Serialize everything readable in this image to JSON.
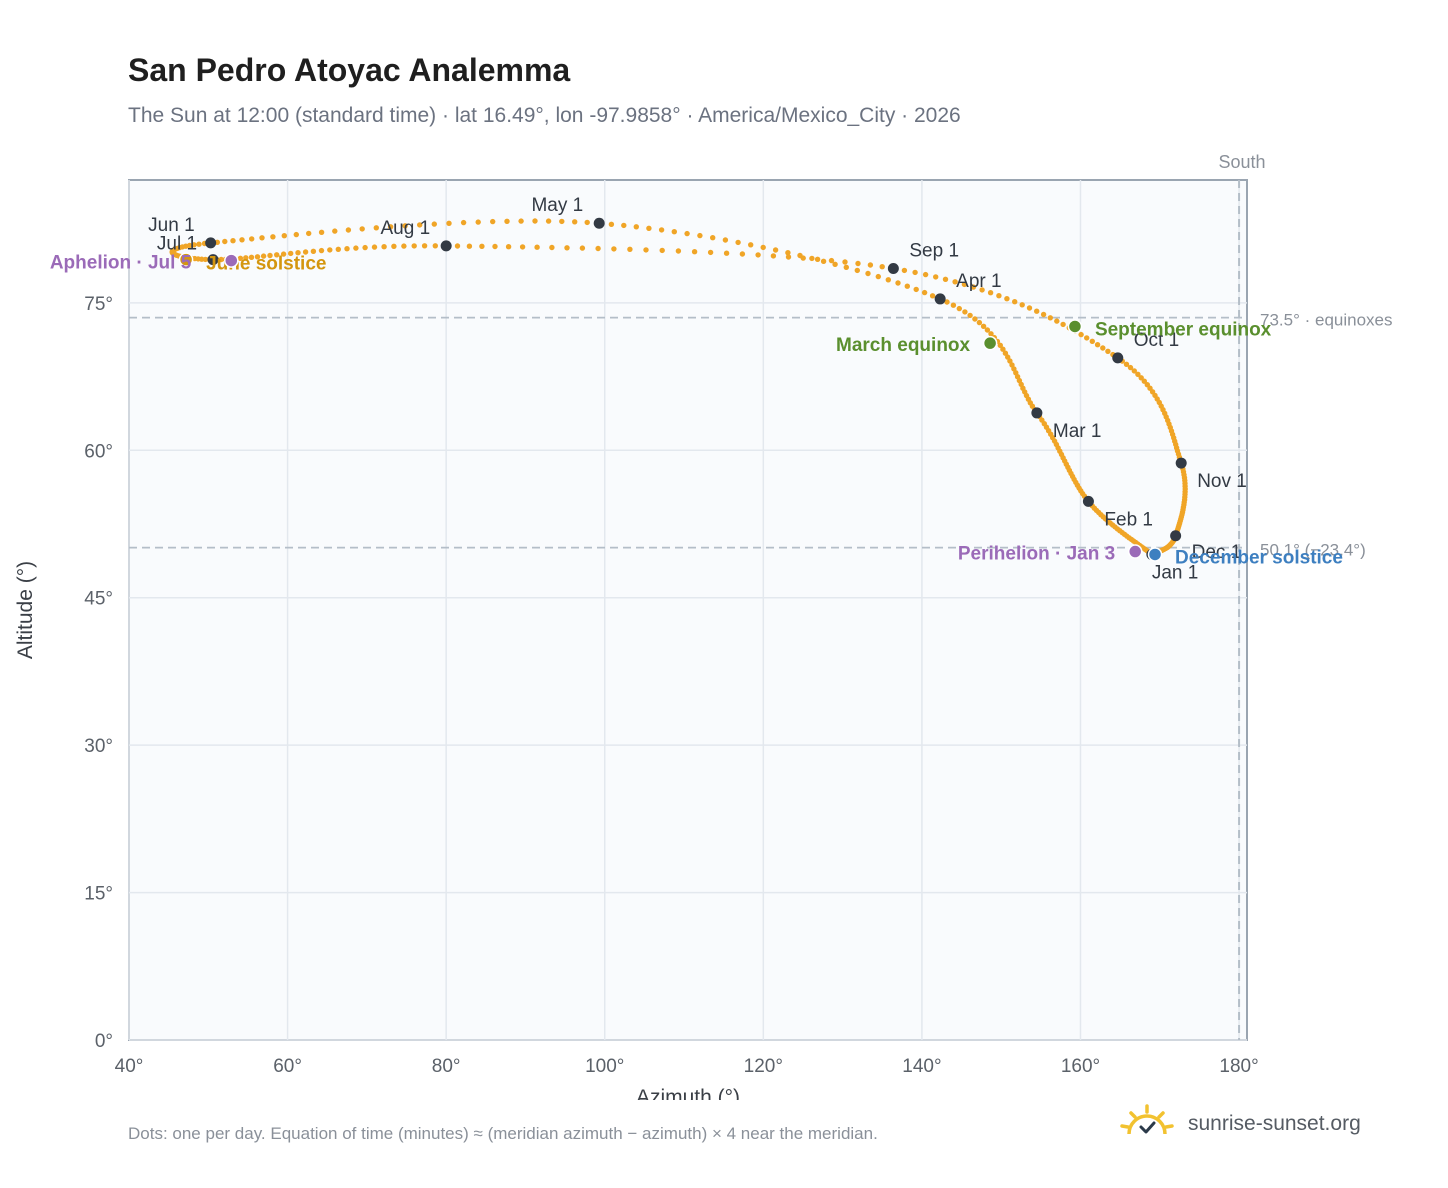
{
  "title": "San Pedro Atoyac Analemma",
  "subtitle": "The Sun at 12:00 (standard time) · lat 16.49°, lon -97.9858° · America/Mexico_City · 2026",
  "footnote": "Dots: one per day. Equation of time (minutes) ≈ (meridian azimuth − azimuth) × 4 near the meridian.",
  "brand": {
    "name": "sunrise-sunset.org",
    "icon": "sun-logo-icon"
  },
  "colors": {
    "curve": "#f0a527",
    "month_marker": "#333a44",
    "equinox": "#5a8f2e",
    "aphelion": "#9b6bb8",
    "solstice_june": "#d4960f",
    "solstice_december": "#3d7fc0",
    "reference_line": "#b4bec8",
    "plot_bg": "#f9fbfd",
    "grid": "#e3e8ee"
  },
  "chart_data": {
    "type": "scatter",
    "xlabel": "Azimuth (°)",
    "ylabel": "Altitude (°)",
    "xlim": [
      40,
      181
    ],
    "ylim": [
      0,
      87.5
    ],
    "x_ticks": [
      40,
      60,
      80,
      100,
      120,
      140,
      160,
      180
    ],
    "x_tick_labels": [
      "40°",
      "60°",
      "80°",
      "100°",
      "120°",
      "140°",
      "160°",
      "180°"
    ],
    "y_ticks": [
      0,
      15,
      30,
      45,
      60,
      75
    ],
    "y_tick_labels": [
      "0°",
      "15°",
      "30°",
      "45°",
      "60°",
      "75°"
    ],
    "grid": true,
    "meridian": {
      "azimuth": 180,
      "label": "South"
    },
    "reference_lines": [
      {
        "altitude": 73.5,
        "label": "73.5° · equinoxes"
      },
      {
        "altitude": 50.1,
        "label": "50.1° (−23.4°)"
      }
    ],
    "month_markers": [
      {
        "label": "Jan 1",
        "x": 169.0,
        "y": 49.4
      },
      {
        "label": "Feb 1",
        "x": 161.0,
        "y": 54.8
      },
      {
        "label": "Mar 1",
        "x": 154.5,
        "y": 63.8
      },
      {
        "label": "Apr 1",
        "x": 142.3,
        "y": 75.4
      },
      {
        "label": "May 1",
        "x": 99.3,
        "y": 83.1
      },
      {
        "label": "Jun 1",
        "x": 50.3,
        "y": 81.1
      },
      {
        "label": "Jul 1",
        "x": 50.6,
        "y": 79.4
      },
      {
        "label": "Aug 1",
        "x": 80.0,
        "y": 80.8
      },
      {
        "label": "Sep 1",
        "x": 136.4,
        "y": 78.5
      },
      {
        "label": "Oct 1",
        "x": 164.7,
        "y": 69.4
      },
      {
        "label": "Nov 1",
        "x": 172.7,
        "y": 58.7
      },
      {
        "label": "Dec 1",
        "x": 172.0,
        "y": 51.3
      }
    ],
    "events": [
      {
        "label": "March equinox",
        "x": 148.6,
        "y": 70.9
      },
      {
        "label": "September equinox",
        "x": 159.3,
        "y": 72.6
      },
      {
        "label": "June solstice",
        "x": 47.2,
        "y": 79.4
      },
      {
        "label": "December solstice",
        "x": 169.4,
        "y": 49.4
      },
      {
        "label": "Aphelion · Jul 5",
        "x": 52.9,
        "y": 79.3
      },
      {
        "label": "Perihelion · Jan 3",
        "x": 166.9,
        "y": 49.7
      }
    ]
  }
}
